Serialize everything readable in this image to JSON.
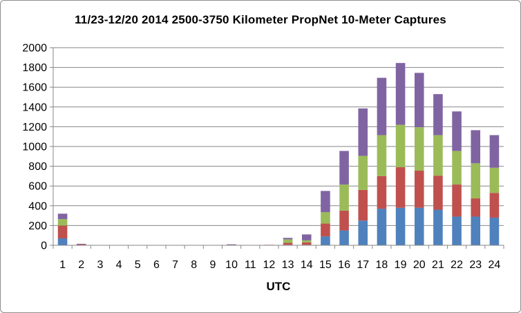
{
  "chart_data": {
    "type": "bar",
    "stacked": true,
    "title": "11/23-12/20 2014 2500-3750 Kilometer PropNet 10-Meter Captures",
    "xlabel": "UTC",
    "ylabel": "",
    "ylim": [
      0,
      2000
    ],
    "yticks": [
      "0",
      "200",
      "400",
      "600",
      "800",
      "1000",
      "1200",
      "1400",
      "1600",
      "1800",
      "2000"
    ],
    "grid": true,
    "legend": "none",
    "categories": [
      "1",
      "2",
      "3",
      "4",
      "5",
      "6",
      "7",
      "8",
      "9",
      "10",
      "11",
      "12",
      "13",
      "14",
      "15",
      "16",
      "17",
      "18",
      "19",
      "20",
      "21",
      "22",
      "23",
      "24"
    ],
    "series": [
      {
        "color": "#4f81bd",
        "values": [
          70,
          0,
          0,
          0,
          0,
          0,
          0,
          0,
          0,
          0,
          0,
          0,
          5,
          5,
          90,
          150,
          250,
          370,
          380,
          380,
          360,
          290,
          290,
          280
        ]
      },
      {
        "color": "#c0504d",
        "values": [
          130,
          10,
          0,
          0,
          0,
          0,
          0,
          0,
          0,
          5,
          0,
          5,
          20,
          25,
          130,
          200,
          310,
          330,
          410,
          375,
          345,
          325,
          185,
          250
        ]
      },
      {
        "color": "#9bbb59",
        "values": [
          65,
          0,
          0,
          0,
          0,
          0,
          0,
          0,
          0,
          0,
          0,
          0,
          35,
          20,
          115,
          265,
          345,
          415,
          430,
          440,
          410,
          340,
          355,
          255
        ]
      },
      {
        "color": "#8064a2",
        "values": [
          55,
          5,
          0,
          0,
          0,
          0,
          0,
          0,
          0,
          5,
          0,
          0,
          15,
          60,
          215,
          340,
          480,
          580,
          625,
          550,
          415,
          400,
          335,
          330
        ]
      }
    ]
  }
}
